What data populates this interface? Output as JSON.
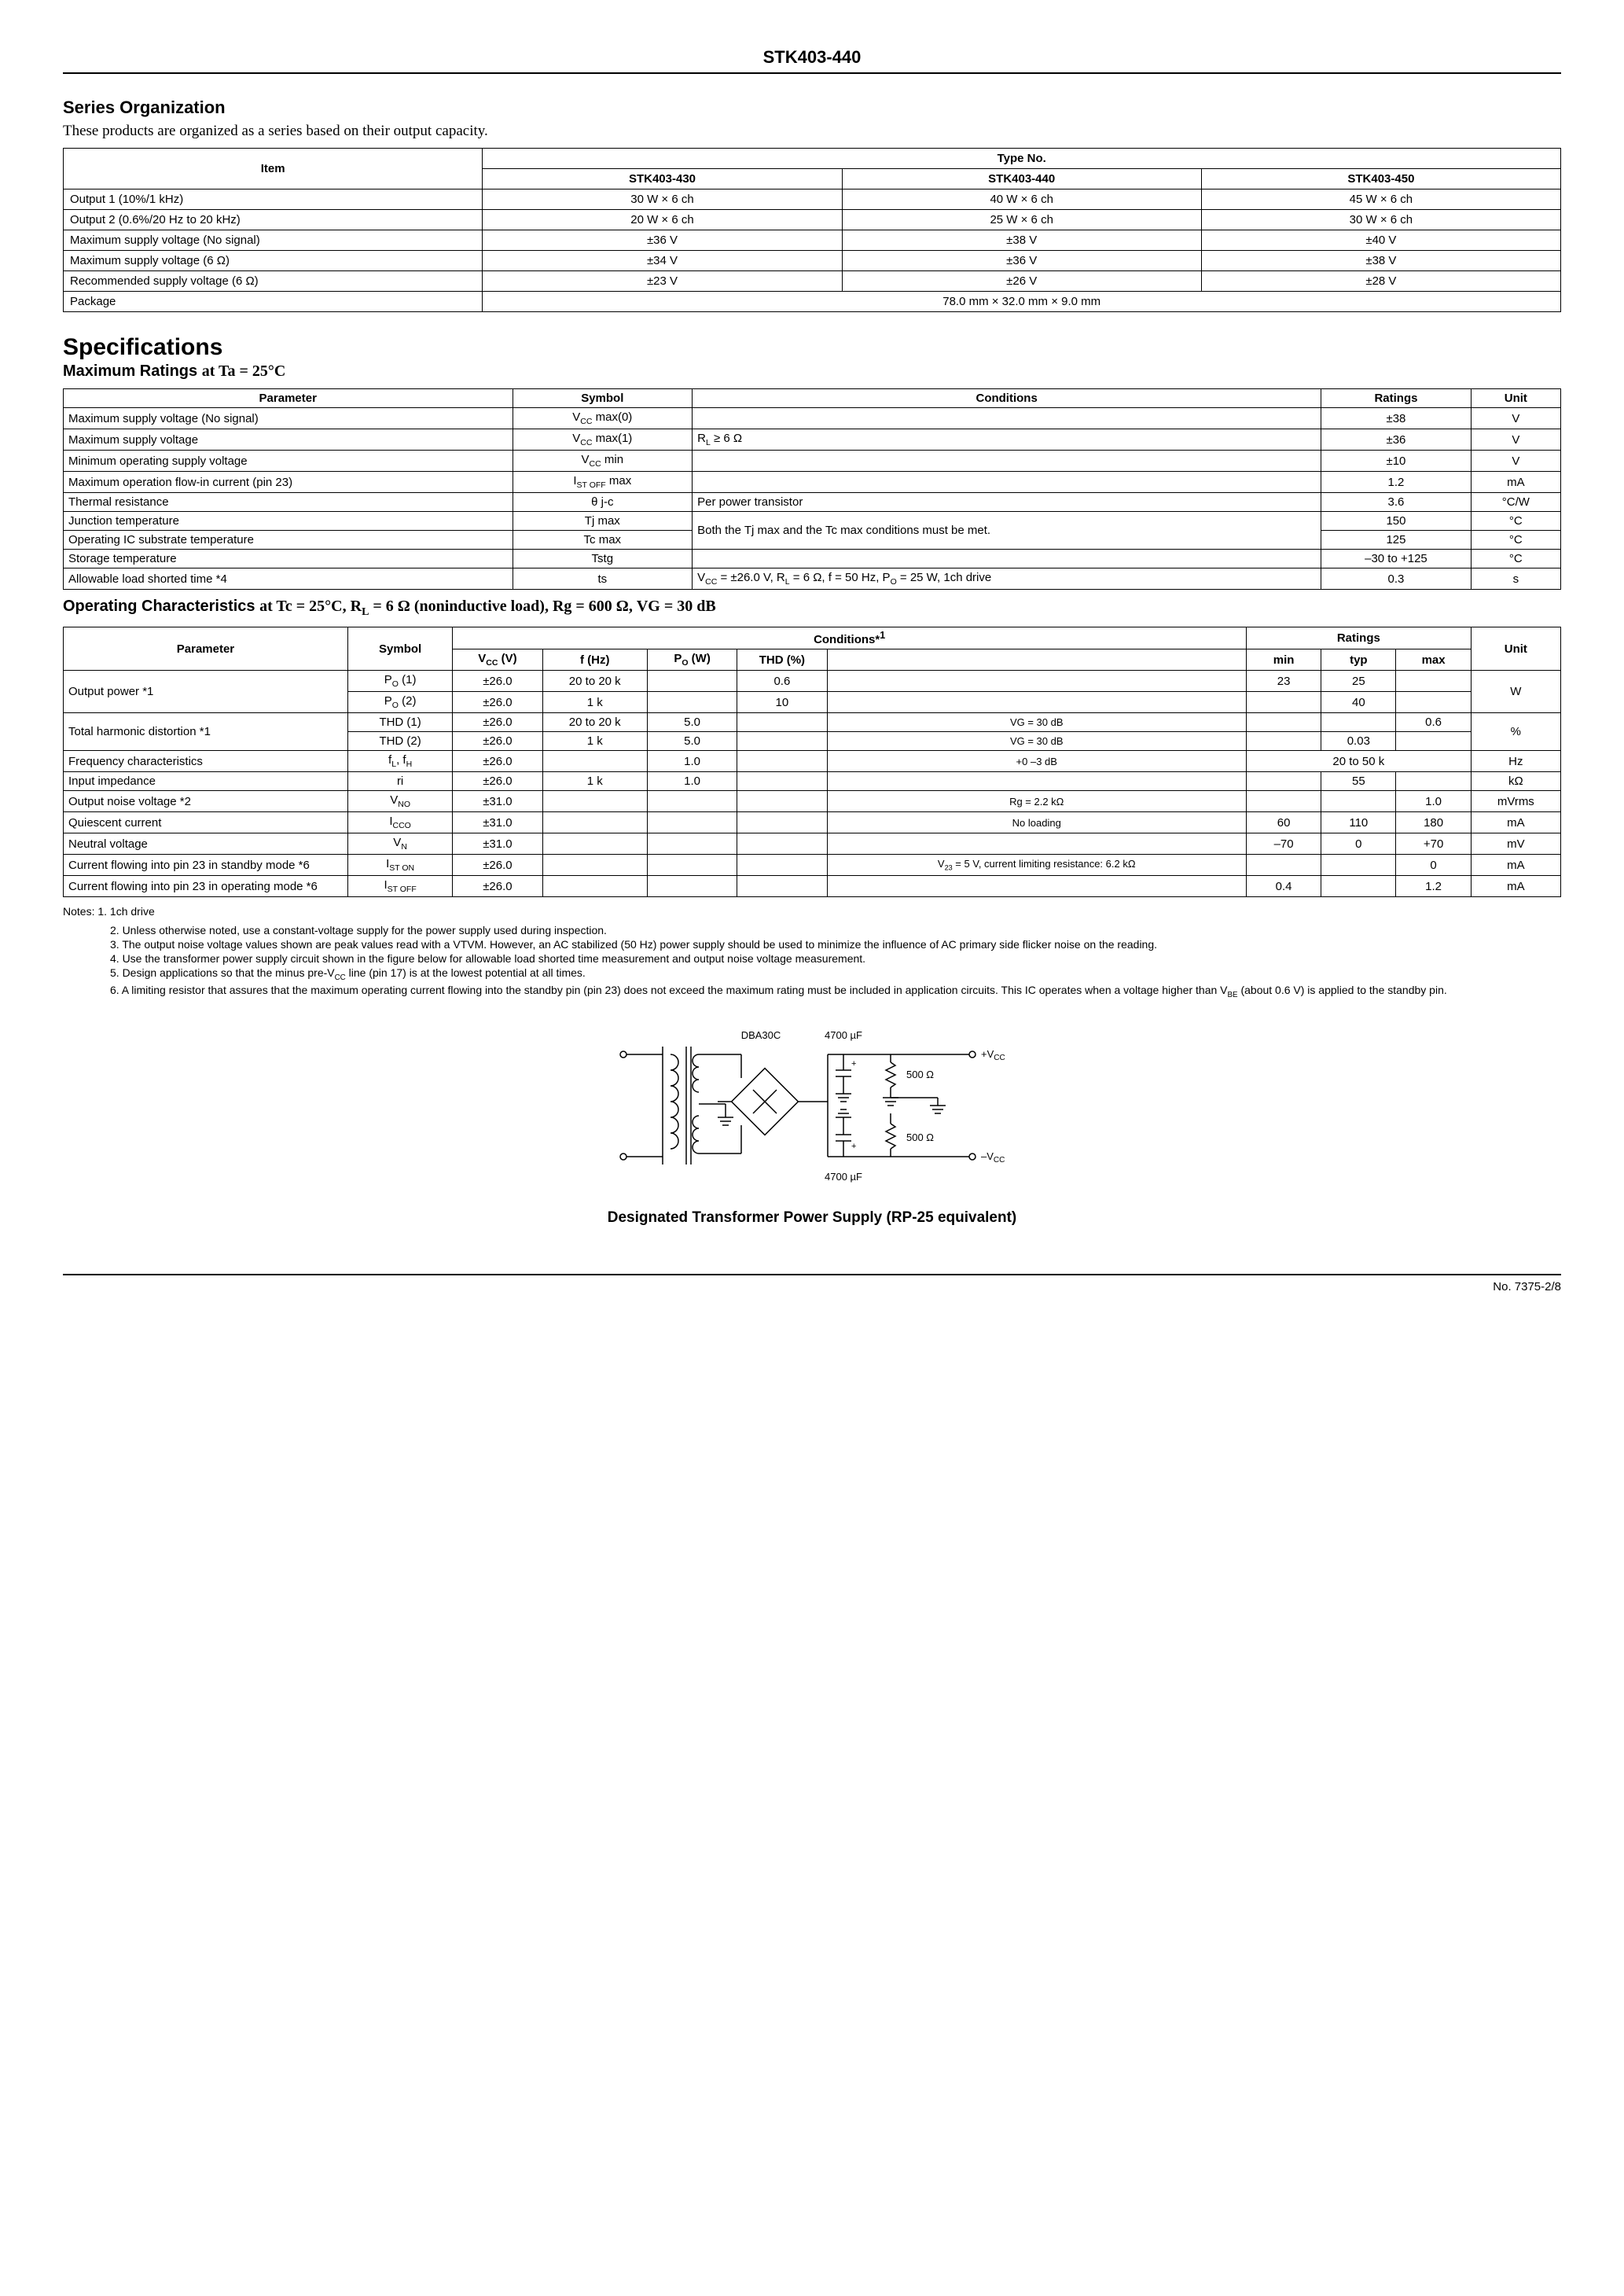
{
  "header": {
    "partNumber": "STK403-440"
  },
  "sections": {
    "seriesOrg": {
      "title": "Series Organization",
      "intro": "These products are organized as a series based on their output capacity.",
      "headerItem": "Item",
      "headerType": "Type No.",
      "models": [
        "STK403-430",
        "STK403-440",
        "STK403-450"
      ],
      "rows": [
        {
          "label": "Output 1 (10%/1 kHz)",
          "v": [
            "30 W × 6 ch",
            "40 W × 6 ch",
            "45 W × 6 ch"
          ]
        },
        {
          "label": "Output 2 (0.6%/20 Hz to 20 kHz)",
          "v": [
            "20 W × 6 ch",
            "25 W × 6 ch",
            "30 W × 6 ch"
          ]
        },
        {
          "label": "Maximum supply voltage (No signal)",
          "v": [
            "±36 V",
            "±38 V",
            "±40 V"
          ]
        },
        {
          "label": "Maximum supply voltage (6 Ω)",
          "v": [
            "±34 V",
            "±36 V",
            "±38 V"
          ]
        },
        {
          "label": "Recommended supply voltage (6 Ω)",
          "v": [
            "±23 V",
            "±26 V",
            "±28 V"
          ]
        }
      ],
      "packageLabel": "Package",
      "packageVal": "78.0 mm × 32.0 mm × 9.0 mm"
    },
    "specTitle": "Specifications",
    "maxRatings": {
      "title": "Maximum Ratings at Ta = 25°C",
      "cols": [
        "Parameter",
        "Symbol",
        "Conditions",
        "Ratings",
        "Unit"
      ],
      "rows": [
        [
          "Maximum supply voltage (No signal)",
          "V<sub>CC</sub> max(0)",
          "",
          "±38",
          "V"
        ],
        [
          "Maximum supply voltage",
          "V<sub>CC</sub> max(1)",
          "R<sub>L</sub> ≥ 6 Ω",
          "±36",
          "V"
        ],
        [
          "Minimum operating supply voltage",
          "V<sub>CC</sub> min",
          "",
          "±10",
          "V"
        ],
        [
          "Maximum operation flow-in current (pin 23)",
          "I<sub>ST OFF</sub> max",
          "",
          "1.2",
          "mA"
        ],
        [
          "Thermal resistance",
          "θ j-c",
          "Per power transistor",
          "3.6",
          "°C/W"
        ],
        [
          "Junction temperature",
          "Tj max",
          "__MERGE__",
          "150",
          "°C"
        ],
        [
          "Operating IC substrate temperature",
          "Tc max",
          "Both the Tj max and the Tc max conditions must be met.",
          "125",
          "°C"
        ],
        [
          "Storage temperature",
          "Tstg",
          "",
          "–30 to +125",
          "°C"
        ],
        [
          "Allowable load shorted time *4",
          "ts",
          "V<sub>CC</sub> = ±26.0 V, R<sub>L</sub> = 6 Ω, f = 50 Hz, P<sub>O</sub> = 25 W, 1ch drive",
          "0.3",
          "s"
        ]
      ]
    },
    "opChar": {
      "title": "Operating Characteristics at Tc = 25°C, R<sub>L</sub> = 6 Ω (noninductive load), Rg = 600 Ω, VG = 30 dB",
      "cols": {
        "param": "Parameter",
        "sym": "Symbol",
        "cond": "Conditions*1",
        "ratings": "Ratings",
        "unit": "Unit",
        "vcc": "V<sub>CC</sub> (V)",
        "f": "f (Hz)",
        "po": "P<sub>O</sub> (W)",
        "thd": "THD (%)",
        "blank": "",
        "min": "min",
        "typ": "typ",
        "max": "max"
      },
      "rows": [
        {
          "param": "Output power *1",
          "paramRows": 2,
          "sym": "P<sub>O</sub> (1)",
          "vcc": "±26.0",
          "f": "20 to 20 k",
          "po": "",
          "thd": "0.6",
          "ext": "",
          "min": "23",
          "typ": "25",
          "max": "",
          "unit": "W",
          "unitRows": 2
        },
        {
          "sym": "P<sub>O</sub> (2)",
          "vcc": "±26.0",
          "f": "1 k",
          "po": "",
          "thd": "10",
          "ext": "",
          "min": "",
          "typ": "40",
          "max": ""
        },
        {
          "param": "Total harmonic distortion *1",
          "paramRows": 2,
          "sym": "THD (1)",
          "vcc": "±26.0",
          "f": "20 to 20 k",
          "po": "5.0",
          "thd": "",
          "ext": "VG = 30 dB",
          "min": "",
          "typ": "",
          "max": "0.6",
          "unit": "%",
          "unitRows": 2
        },
        {
          "sym": "THD (2)",
          "vcc": "±26.0",
          "f": "1 k",
          "po": "5.0",
          "thd": "",
          "ext": "VG = 30 dB",
          "min": "",
          "typ": "0.03",
          "max": ""
        },
        {
          "param": "Frequency characteristics",
          "sym": "f<sub>L</sub>, f<sub>H</sub>",
          "vcc": "±26.0",
          "f": "",
          "po": "1.0",
          "thd": "",
          "ext": "+0  –3 dB",
          "min": "",
          "typ": "20 to 50 k",
          "typSpan": 3,
          "max": "",
          "unit": "Hz"
        },
        {
          "param": "Input impedance",
          "sym": "ri",
          "vcc": "±26.0",
          "f": "1 k",
          "po": "1.0",
          "thd": "",
          "ext": "",
          "min": "",
          "typ": "55",
          "max": "",
          "unit": "kΩ"
        },
        {
          "param": "Output noise voltage *2",
          "sym": "V<sub>NO</sub>",
          "vcc": "±31.0",
          "f": "",
          "po": "",
          "thd": "",
          "ext": "Rg = 2.2 kΩ",
          "min": "",
          "typ": "",
          "max": "1.0",
          "unit": "mVrms"
        },
        {
          "param": "Quiescent current",
          "sym": "I<sub>CCO</sub>",
          "vcc": "±31.0",
          "f": "",
          "po": "",
          "thd": "",
          "ext": "No loading",
          "min": "60",
          "typ": "110",
          "max": "180",
          "unit": "mA"
        },
        {
          "param": "Neutral voltage",
          "sym": "V<sub>N</sub>",
          "vcc": "±31.0",
          "f": "",
          "po": "",
          "thd": "",
          "ext": "",
          "min": "–70",
          "typ": "0",
          "max": "+70",
          "unit": "mV"
        },
        {
          "param": "Current flowing into pin 23 in standby mode *6",
          "sym": "I<sub>ST ON</sub>",
          "vcc": "±26.0",
          "f": "",
          "po": "",
          "thd": "",
          "ext": "V<sub>23</sub> = 5 V, current limiting resistance: 6.2 kΩ",
          "min": "",
          "typ": "",
          "max": "0",
          "unit": "mA"
        },
        {
          "param": "Current flowing into pin 23 in operating mode *6",
          "sym": "I<sub>ST OFF</sub>",
          "vcc": "±26.0",
          "f": "",
          "po": "",
          "thd": "",
          "ext": "",
          "min": "0.4",
          "typ": "",
          "max": "1.2",
          "unit": "mA"
        }
      ]
    },
    "notesLabel": "Notes: 1. 1ch drive",
    "notes": [
      "2. Unless otherwise noted, use a constant-voltage supply for the power supply used during inspection.",
      "3. The output noise voltage values shown are peak values read with a VTVM. However, an AC stabilized (50 Hz) power supply should be used to minimize the influence of AC primary side flicker noise on the reading.",
      "4. Use the transformer power supply circuit shown in the figure below for allowable load shorted time measurement and  output noise voltage measurement.",
      "5. Design applications so that the minus pre-V<sub>CC</sub> line (pin 17) is at the lowest potential at all times.",
      "6. A limiting resistor that assures that the maximum operating current flowing into the standby pin (pin 23) does not exceed the maximum rating must be included in application circuits. This IC operates when a voltage higher than V<sub>BE</sub> (about 0.6 V) is applied to the standby pin."
    ],
    "diagram": {
      "labels": {
        "bridge": "DBA30C",
        "capTop": "4700 µF",
        "capBot": "4700 µF",
        "r": "500 Ω",
        "vccP": "+V",
        "vccN": "–V",
        "cc": "CC"
      },
      "caption": "Designated Transformer Power Supply (RP-25 equivalent)"
    }
  },
  "footer": {
    "docNo": "No. 7375-2/8"
  },
  "colors": {
    "text": "#000000",
    "bg": "#ffffff",
    "border": "#000000"
  }
}
